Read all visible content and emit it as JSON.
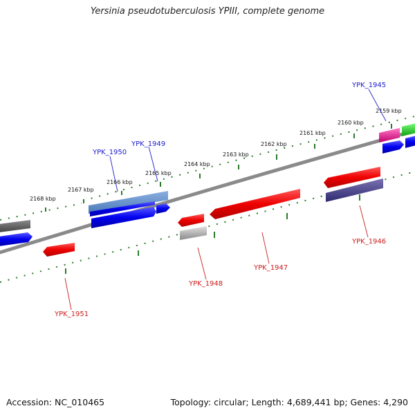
{
  "title": "Yersinia pseudotuberculosis YPIII, complete genome",
  "footer": {
    "accession": "Accession: NC_010465",
    "summary": "Topology: circular; Length: 4,689,441 bp; Genes: 4,290"
  },
  "ruler_labels": [
    "2168 kbp",
    "2167 kbp",
    "2166 kbp",
    "2165 kbp",
    "2164 kbp",
    "2163 kbp",
    "2162 kbp",
    "2161 kbp",
    "2160 kbp",
    "2159 kbp"
  ],
  "gene_labels": {
    "top": [
      "YPK_1950",
      "YPK_1949",
      "YPK_1945"
    ],
    "bottom": [
      "YPK_1951",
      "YPK_1948",
      "YPK_1947",
      "YPK_1946"
    ]
  },
  "colors": {
    "forward_label": "#1a1acc",
    "reverse_label": "#cc1a1a",
    "backbone": "#7a7a7a",
    "ruler": "#2a7a2a"
  }
}
